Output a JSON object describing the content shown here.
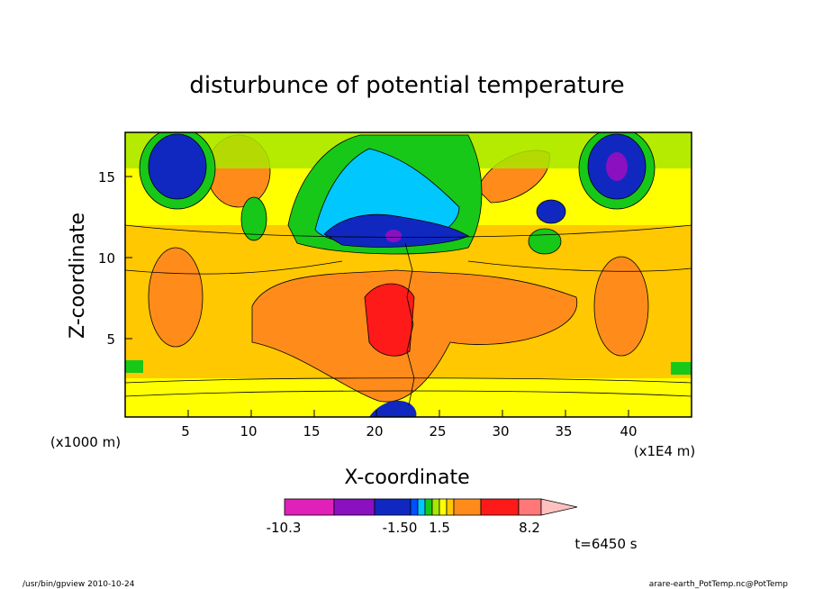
{
  "chart_data": {
    "type": "heatmap",
    "title": "disturbunce of potential temperature",
    "xlabel": "X-coordinate",
    "ylabel": "Z-coordinate",
    "x_unit_left": "(x1000 m)",
    "x_unit_right": "(x1E4 m)",
    "xlim": [
      0,
      45
    ],
    "ylim": [
      0,
      17.5
    ],
    "x_ticks": [
      "5",
      "10",
      "15",
      "20",
      "25",
      "30",
      "35",
      "40"
    ],
    "y_ticks": [
      "5",
      "10",
      "15"
    ],
    "time_label": "t=6450 s",
    "colorbar": {
      "labels": [
        "-10.3",
        "-1.50",
        "1.5",
        "8.2"
      ],
      "colors": [
        "#e020b8",
        "#8a10c0",
        "#1028c0",
        "#0050ff",
        "#00c8ff",
        "#18c818",
        "#a8e800",
        "#ffff00",
        "#ffc800",
        "#ff8c1a",
        "#ff1a1a",
        "#ff7878",
        "#ffc0c0"
      ]
    },
    "features": [
      {
        "name": "warm-core",
        "x": 21.5,
        "z": 7.2,
        "level": "8.2"
      },
      {
        "name": "cold-upper-left",
        "x": 4,
        "z": 15.5,
        "level": "-1.50"
      },
      {
        "name": "cold-upper-right",
        "x": 39,
        "z": 15.5,
        "level": "-10.3"
      },
      {
        "name": "cold-upper-center",
        "x": 21,
        "z": 12,
        "level": "-10.3"
      }
    ]
  },
  "footer": {
    "left": "/usr/bin/gpview   2010-10-24",
    "right": "arare-earth_PotTemp.nc@PotTemp"
  }
}
